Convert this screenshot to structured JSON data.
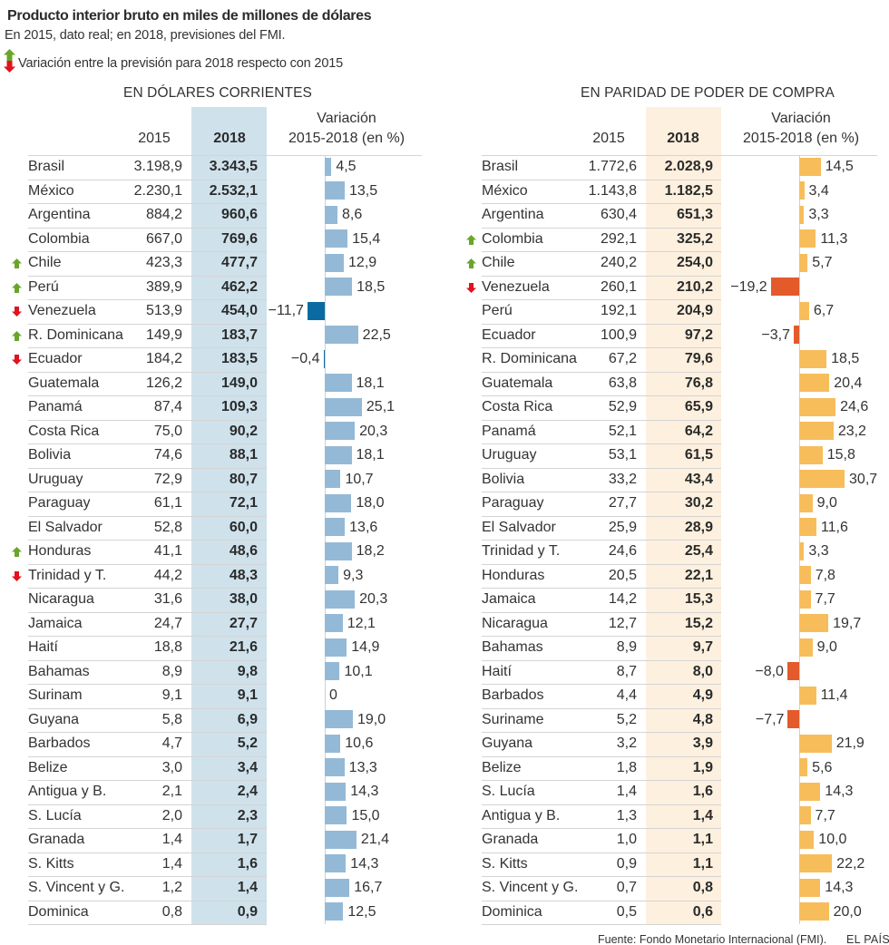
{
  "header": {
    "title": "Producto interior bruto en miles de millones de dólares",
    "subtitle": "En 2015, dato real; en 2018, previsiones del FMI.",
    "legend_text": "Variación entre la previsión para 2018 respecto con 2015"
  },
  "legend": {
    "icons": [
      "arrow-up-icon",
      "arrow-down-icon"
    ],
    "up_color": "#6aa52b",
    "down_color": "#e0121e"
  },
  "colors": {
    "text": "#333333",
    "rule": "#d4d4d4",
    "left_highlight": "#cfe2ec",
    "right_highlight": "#fdf0df",
    "left_bar_positive": "#94b9d6",
    "left_bar_negative": "#0b6aa2",
    "right_bar_positive": "#f7bd5b",
    "right_bar_negative": "#e35a2b"
  },
  "footer": {
    "source": "Fuente: Fondo Monetario Internacional (FMI).",
    "brand": "EL PAÍS"
  },
  "chart_data": [
    {
      "type": "bar",
      "orientation": "horizontal",
      "title": "EN DÓLARES CORRIENTES",
      "units": "miles de millones de dólares",
      "column_headers": {
        "y2015": "2015",
        "y2018": "2018",
        "variation": [
          "Variación",
          "2015-2018 (en %)"
        ]
      },
      "xlabel": "Variación 2015-2018 (en %)",
      "categories": [
        "Brasil",
        "México",
        "Argentina",
        "Colombia",
        "Chile",
        "Perú",
        "Venezuela",
        "R. Dominicana",
        "Ecuador",
        "Guatemala",
        "Panamá",
        "Costa Rica",
        "Bolivia",
        "Uruguay",
        "Paraguay",
        "El Salvador",
        "Honduras",
        "Trinidad y T.",
        "Nicaragua",
        "Jamaica",
        "Haití",
        "Bahamas",
        "Surinam",
        "Guyana",
        "Barbados",
        "Belize",
        "Antigua y B.",
        "S. Lucía",
        "Granada",
        "S. Kitts",
        "S. Vincent y G.",
        "Dominica"
      ],
      "series": [
        {
          "name": "2015",
          "values": [
            3198.9,
            2230.1,
            884.2,
            667.0,
            423.3,
            389.9,
            513.9,
            149.9,
            184.2,
            126.2,
            87.4,
            75.0,
            74.6,
            72.9,
            61.1,
            52.8,
            41.1,
            44.2,
            31.6,
            24.7,
            18.8,
            8.9,
            9.1,
            5.8,
            4.7,
            3.0,
            2.1,
            2.0,
            1.4,
            1.4,
            1.2,
            0.8
          ]
        },
        {
          "name": "2018",
          "values": [
            3343.5,
            2532.1,
            960.6,
            769.6,
            477.7,
            462.2,
            454.0,
            183.7,
            183.5,
            149.0,
            109.3,
            90.2,
            88.1,
            80.7,
            72.1,
            60.0,
            48.6,
            48.3,
            38.0,
            27.7,
            21.6,
            9.8,
            9.1,
            6.9,
            5.2,
            3.4,
            2.4,
            2.3,
            1.7,
            1.6,
            1.4,
            0.9
          ]
        },
        {
          "name": "Variación 2015-2018 (en %)",
          "values": [
            4.5,
            13.5,
            8.6,
            15.4,
            12.9,
            18.5,
            -11.7,
            22.5,
            -0.4,
            18.1,
            25.1,
            20.3,
            18.1,
            10.7,
            18.0,
            13.6,
            18.2,
            9.3,
            20.3,
            12.1,
            14.9,
            10.1,
            0,
            19.0,
            10.6,
            13.3,
            14.3,
            15.0,
            21.4,
            14.3,
            16.7,
            12.5
          ]
        }
      ],
      "trend": [
        null,
        null,
        null,
        null,
        "up",
        "up",
        "down",
        "up",
        "down",
        null,
        null,
        null,
        null,
        null,
        null,
        null,
        "up",
        "down",
        null,
        null,
        null,
        null,
        null,
        null,
        null,
        null,
        null,
        null,
        null,
        null,
        null,
        null
      ]
    },
    {
      "type": "bar",
      "orientation": "horizontal",
      "title": "EN PARIDAD DE PODER DE COMPRA",
      "units": "miles de millones de dólares",
      "column_headers": {
        "y2015": "2015",
        "y2018": "2018",
        "variation": [
          "Variación",
          "2015-2018 (en %)"
        ]
      },
      "xlabel": "Variación 2015-2018 (en %)",
      "categories": [
        "Brasil",
        "México",
        "Argentina",
        "Colombia",
        "Chile",
        "Venezuela",
        "Perú",
        "Ecuador",
        "R. Dominicana",
        "Guatemala",
        "Costa Rica",
        "Panamá",
        "Uruguay",
        "Bolivia",
        "Paraguay",
        "El Salvador",
        "Trinidad y T.",
        "Honduras",
        "Jamaica",
        "Nicaragua",
        "Bahamas",
        "Haití",
        "Barbados",
        "Suriname",
        "Guyana",
        "Belize",
        "S. Lucía",
        "Antigua y B.",
        "Granada",
        "S. Kitts",
        "S. Vincent y G.",
        "Dominica"
      ],
      "series": [
        {
          "name": "2015",
          "values": [
            1772.6,
            1143.8,
            630.4,
            292.1,
            240.2,
            260.1,
            192.1,
            100.9,
            67.2,
            63.8,
            52.9,
            52.1,
            53.1,
            33.2,
            27.7,
            25.9,
            24.6,
            20.5,
            14.2,
            12.7,
            8.9,
            8.7,
            4.4,
            5.2,
            3.2,
            1.8,
            1.4,
            1.3,
            1.0,
            0.9,
            0.7,
            0.5
          ]
        },
        {
          "name": "2018",
          "values": [
            2028.9,
            1182.5,
            651.3,
            325.2,
            254.0,
            210.2,
            204.9,
            97.2,
            79.6,
            76.8,
            65.9,
            64.2,
            61.5,
            43.4,
            30.2,
            28.9,
            25.4,
            22.1,
            15.3,
            15.2,
            9.7,
            8.0,
            4.9,
            4.8,
            3.9,
            1.9,
            1.6,
            1.4,
            1.1,
            1.1,
            0.8,
            0.6
          ]
        },
        {
          "name": "Variación 2015-2018 (en %)",
          "values": [
            14.5,
            3.4,
            3.3,
            11.3,
            5.7,
            -19.2,
            6.7,
            -3.7,
            18.5,
            20.4,
            24.6,
            23.2,
            15.8,
            30.7,
            9.0,
            11.6,
            3.3,
            7.8,
            7.7,
            19.7,
            9.0,
            -8.0,
            11.4,
            -7.7,
            21.9,
            5.6,
            14.3,
            7.7,
            10.0,
            22.2,
            14.3,
            20.0
          ]
        }
      ],
      "trend": [
        null,
        null,
        null,
        "up",
        "up",
        "down",
        null,
        null,
        null,
        null,
        null,
        null,
        null,
        null,
        null,
        null,
        null,
        null,
        null,
        null,
        null,
        null,
        null,
        null,
        null,
        null,
        null,
        null,
        null,
        null,
        null,
        null
      ]
    }
  ]
}
